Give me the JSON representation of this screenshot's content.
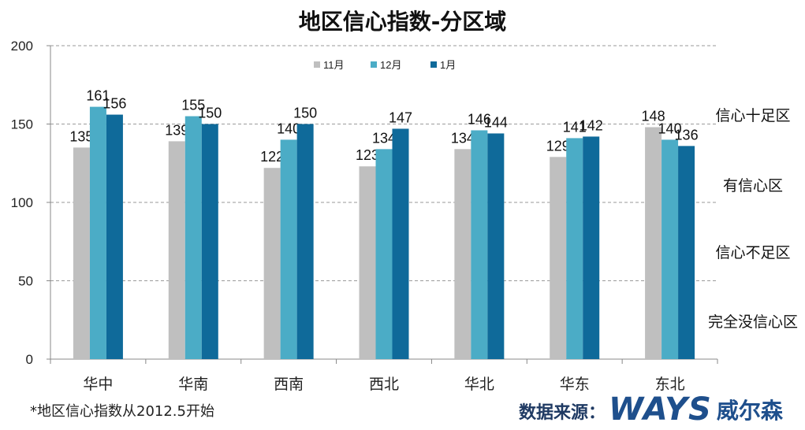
{
  "title": "地区信心指数-分区域",
  "footnote": "*地区信心指数从2012.5开始",
  "source_label": "数据来源：",
  "brand": {
    "logo": "WAYS",
    "name": "威尔森"
  },
  "chart_data": {
    "type": "bar",
    "title": "地区信心指数-分区域",
    "categories": [
      "华中",
      "华南",
      "西南",
      "西北",
      "华北",
      "华东",
      "东北"
    ],
    "series": [
      {
        "name": "11月",
        "color": "#bfbfbf",
        "values": [
          135,
          139,
          122,
          123,
          134,
          129,
          148
        ]
      },
      {
        "name": "12月",
        "color": "#4bacc6",
        "values": [
          161,
          155,
          140,
          134,
          146,
          141,
          140
        ]
      },
      {
        "name": "1月",
        "color": "#0f6a9a",
        "values": [
          156,
          150,
          150,
          147,
          144,
          142,
          136
        ]
      }
    ],
    "ylim": [
      0,
      200
    ],
    "yticks": [
      0,
      50,
      100,
      150,
      200
    ],
    "grid": true,
    "legend": "top",
    "zone_labels": [
      "信心十足区",
      "有信心区",
      "信心不足区",
      "完全没信心区"
    ]
  }
}
